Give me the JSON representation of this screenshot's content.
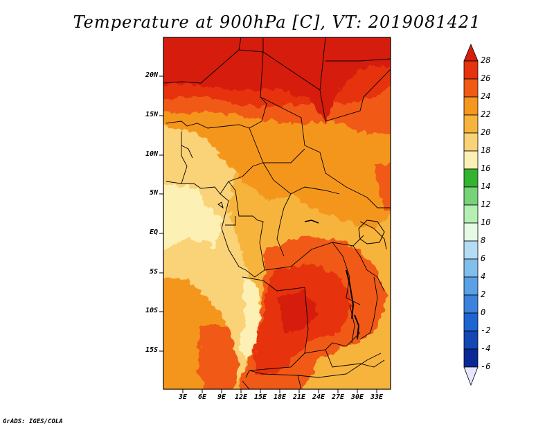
{
  "title": "Temperature at 900hPa [C], VT: 2019081421",
  "credit": "GrADS: IGES/COLA",
  "map": {
    "lat_labels": [
      "20N",
      "15N",
      "10N",
      "5N",
      "EQ",
      "5S",
      "10S",
      "15S"
    ],
    "lon_labels": [
      "3E",
      "6E",
      "9E",
      "12E",
      "15E",
      "18E",
      "21E",
      "24E",
      "27E",
      "30E",
      "33E"
    ]
  },
  "colorbar": {
    "labels": [
      "28",
      "26",
      "24",
      "22",
      "20",
      "18",
      "16",
      "14",
      "12",
      "10",
      "8",
      "6",
      "4",
      "2",
      "0",
      "-2",
      "-4",
      "-6"
    ],
    "colors": {
      "above_28": "#d61e0c",
      "26_28": "#e6320f",
      "24_26": "#f05a14",
      "22_24": "#f5961e",
      "20_22": "#f7b43c",
      "18_20": "#fad278",
      "16_18": "#fdf0b4",
      "14_16": "#32b432",
      "12_14": "#78d278",
      "10_12": "#b4f0b4",
      "8_10": "#e6fae6",
      "6_8": "#b4dcf5",
      "4_6": "#82beeb",
      "2_4": "#5aa0e6",
      "0_2": "#3c82dc",
      "m2_0": "#1e64d2",
      "m4_m2": "#1446b4",
      "m6_m4": "#0a2896",
      "below_m6": "#08105a",
      "cap_below": "#e6e6ff"
    }
  }
}
